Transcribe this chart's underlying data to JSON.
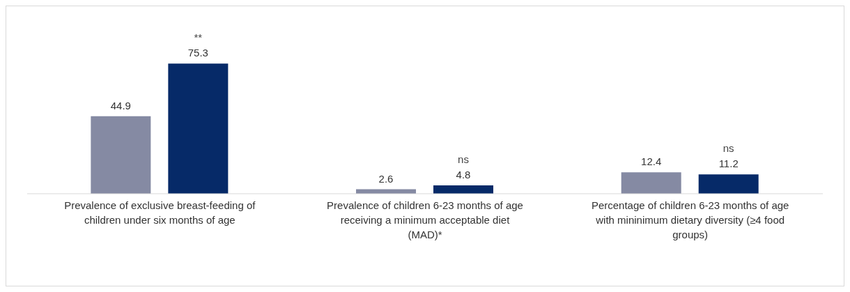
{
  "chart_data": {
    "type": "bar",
    "categories": [
      "Prevalence of exclusive breast-feeding of children under six months of age",
      "Prevalence of children 6-23 months of age receiving a minimum acceptable diet (MAD)*",
      "Percentage of children 6-23 months of age with mininimum dietary diversity (≥4 food groups)"
    ],
    "series": [
      {
        "color": "#858aa3",
        "values": [
          44.9,
          2.6,
          12.4
        ]
      },
      {
        "color": "#062a68",
        "values": [
          75.3,
          4.8,
          11.2
        ]
      }
    ],
    "data_labels": true,
    "annotations": [
      "**",
      "ns",
      "ns"
    ]
  }
}
